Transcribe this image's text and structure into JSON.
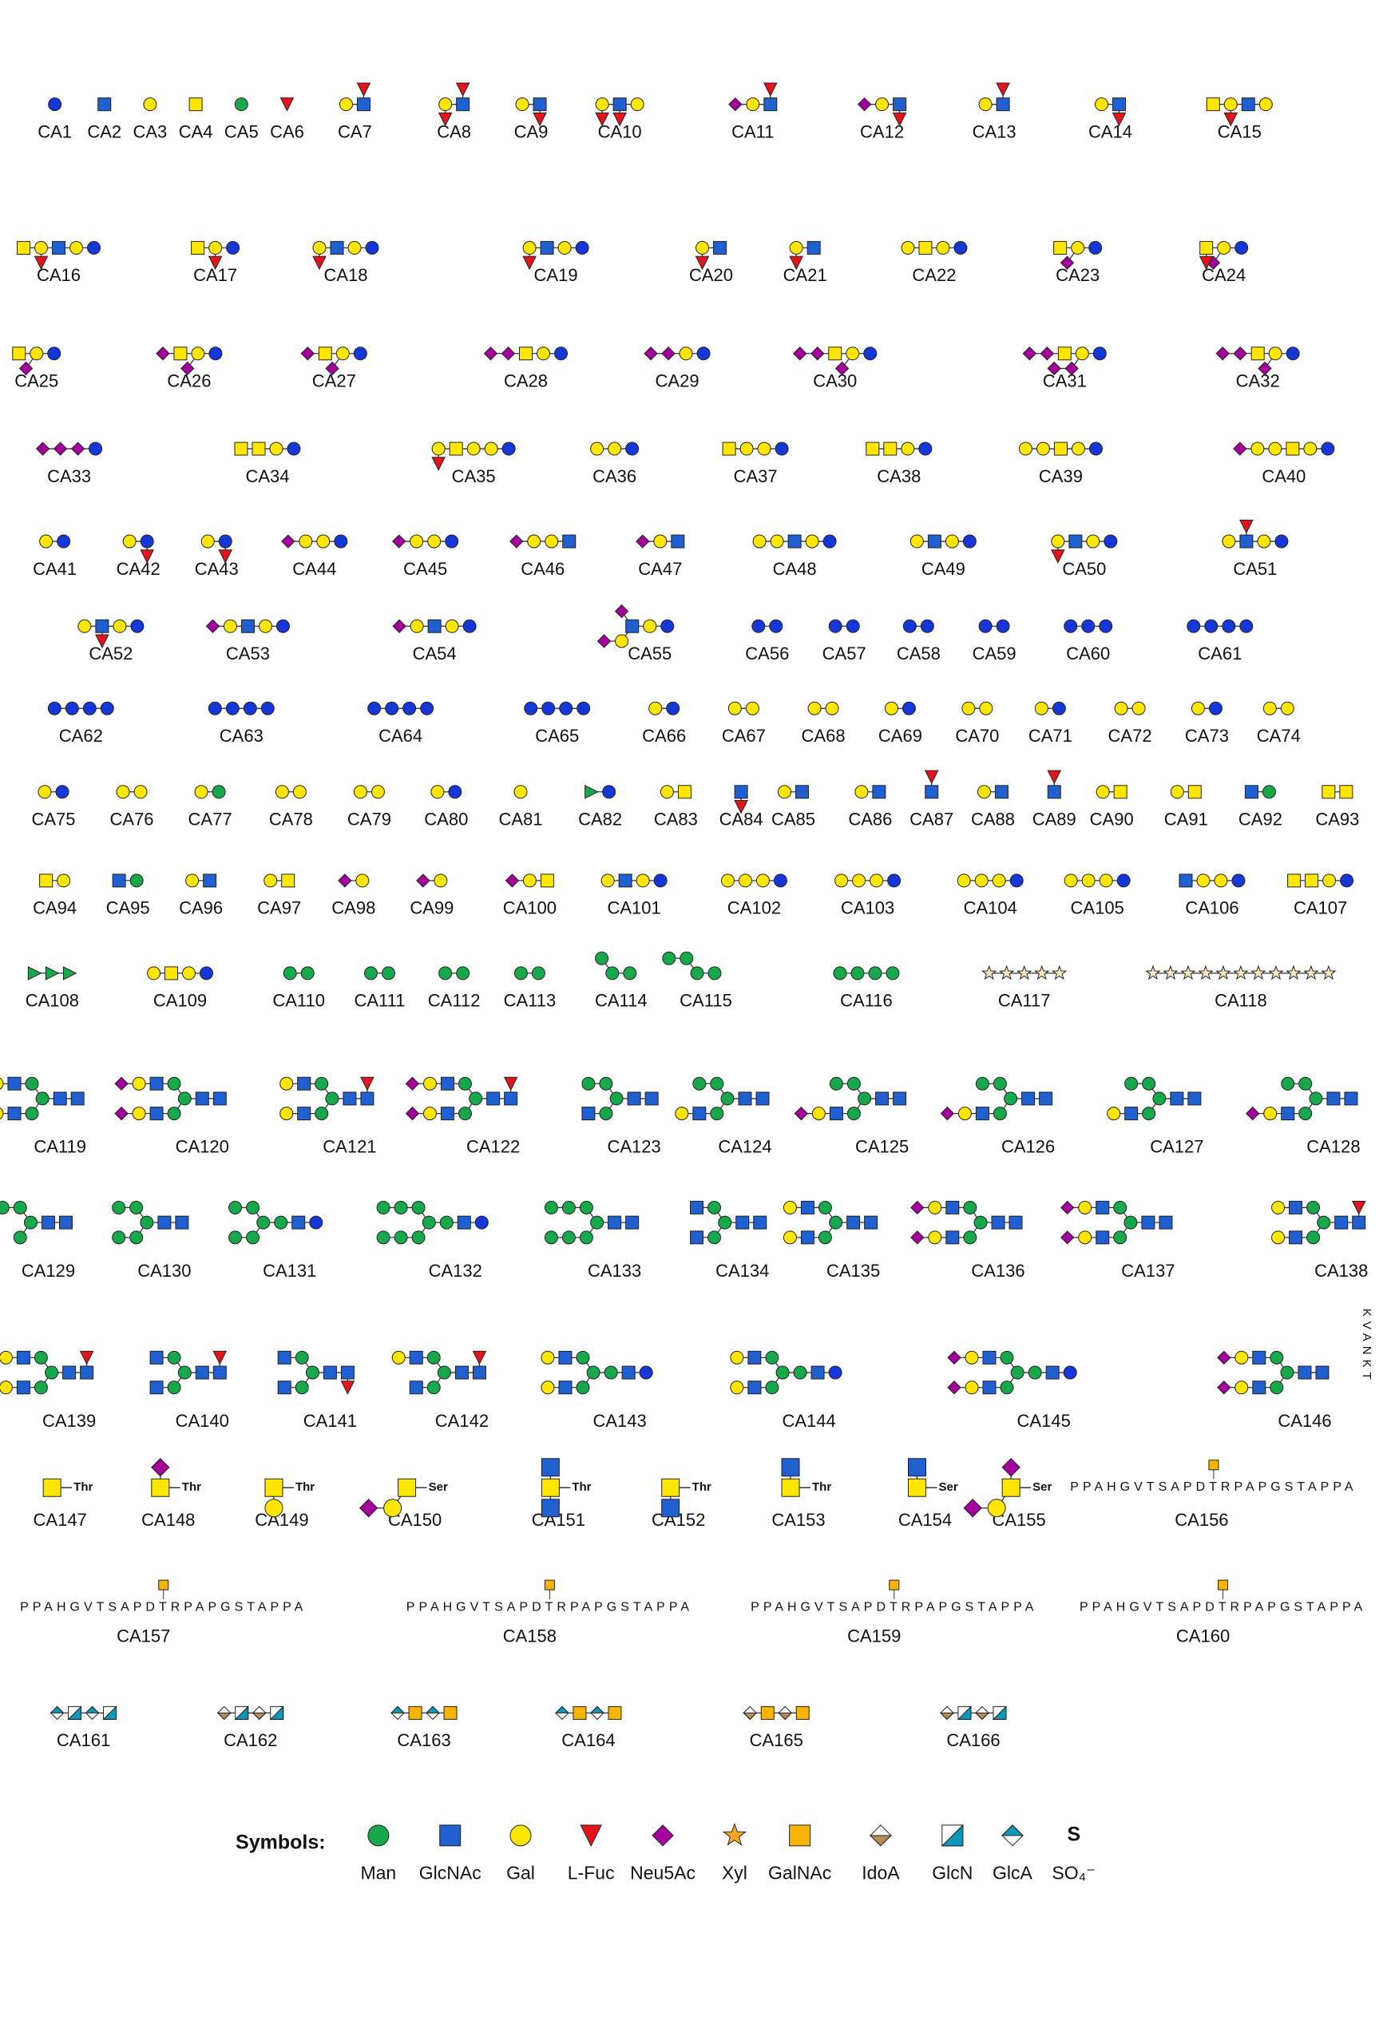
{
  "glycans": [
    {
      "label": "CA1"
    },
    {
      "label": "CA2"
    },
    {
      "label": "CA3"
    },
    {
      "label": "CA4"
    },
    {
      "label": "CA5"
    },
    {
      "label": "CA6"
    },
    {
      "label": "CA7"
    },
    {
      "label": "CA8"
    },
    {
      "label": "CA9"
    },
    {
      "label": "CA10"
    },
    {
      "label": "CA11"
    },
    {
      "label": "CA12"
    },
    {
      "label": "CA13"
    },
    {
      "label": "CA14"
    },
    {
      "label": "CA15"
    },
    {
      "label": "CA16"
    },
    {
      "label": "CA17"
    },
    {
      "label": "CA18"
    },
    {
      "label": "CA19"
    },
    {
      "label": "CA20"
    },
    {
      "label": "CA21"
    },
    {
      "label": "CA22"
    },
    {
      "label": "CA23"
    },
    {
      "label": "CA24"
    },
    {
      "label": "CA25"
    },
    {
      "label": "CA26"
    },
    {
      "label": "CA27"
    },
    {
      "label": "CA28"
    },
    {
      "label": "CA29"
    },
    {
      "label": "CA30"
    },
    {
      "label": "CA31"
    },
    {
      "label": "CA32"
    },
    {
      "label": "CA33"
    },
    {
      "label": "CA34"
    },
    {
      "label": "CA35"
    },
    {
      "label": "CA36"
    },
    {
      "label": "CA37"
    },
    {
      "label": "CA38"
    },
    {
      "label": "CA39"
    },
    {
      "label": "CA40"
    },
    {
      "label": "CA41"
    },
    {
      "label": "CA42"
    },
    {
      "label": "CA43"
    },
    {
      "label": "CA44"
    },
    {
      "label": "CA45"
    },
    {
      "label": "CA46"
    },
    {
      "label": "CA47"
    },
    {
      "label": "CA48"
    },
    {
      "label": "CA49"
    },
    {
      "label": "CA50"
    },
    {
      "label": "CA51"
    },
    {
      "label": "CA52"
    },
    {
      "label": "CA53"
    },
    {
      "label": "CA54"
    },
    {
      "label": "CA55"
    },
    {
      "label": "CA56"
    },
    {
      "label": "CA57"
    },
    {
      "label": "CA58"
    },
    {
      "label": "CA59"
    },
    {
      "label": "CA60"
    },
    {
      "label": "CA61"
    },
    {
      "label": "CA62"
    },
    {
      "label": "CA63"
    },
    {
      "label": "CA64"
    },
    {
      "label": "CA65"
    },
    {
      "label": "CA66"
    },
    {
      "label": "CA67"
    },
    {
      "label": "CA68"
    },
    {
      "label": "CA69"
    },
    {
      "label": "CA70"
    },
    {
      "label": "CA71"
    },
    {
      "label": "CA72"
    },
    {
      "label": "CA73"
    },
    {
      "label": "CA74"
    },
    {
      "label": "CA75"
    },
    {
      "label": "CA76"
    },
    {
      "label": "CA77"
    },
    {
      "label": "CA78"
    },
    {
      "label": "CA79"
    },
    {
      "label": "CA80"
    },
    {
      "label": "CA81"
    },
    {
      "label": "CA82"
    },
    {
      "label": "CA83"
    },
    {
      "label": "CA84"
    },
    {
      "label": "CA85"
    },
    {
      "label": "CA86"
    },
    {
      "label": "CA87"
    },
    {
      "label": "CA88"
    },
    {
      "label": "CA89"
    },
    {
      "label": "CA90"
    },
    {
      "label": "CA91"
    },
    {
      "label": "CA92"
    },
    {
      "label": "CA93"
    },
    {
      "label": "CA94"
    },
    {
      "label": "CA95"
    },
    {
      "label": "CA96"
    },
    {
      "label": "CA97"
    },
    {
      "label": "CA98"
    },
    {
      "label": "CA99"
    },
    {
      "label": "CA100"
    },
    {
      "label": "CA101"
    },
    {
      "label": "CA102"
    },
    {
      "label": "CA103"
    },
    {
      "label": "CA104"
    },
    {
      "label": "CA105"
    },
    {
      "label": "CA106"
    },
    {
      "label": "CA107"
    },
    {
      "label": "CA108"
    },
    {
      "label": "CA109"
    },
    {
      "label": "CA110"
    },
    {
      "label": "CA111"
    },
    {
      "label": "CA112"
    },
    {
      "label": "CA113"
    },
    {
      "label": "CA114"
    },
    {
      "label": "CA115"
    },
    {
      "label": "CA116"
    },
    {
      "label": "CA117"
    },
    {
      "label": "CA118"
    },
    {
      "label": "CA119"
    },
    {
      "label": "CA120"
    },
    {
      "label": "CA121"
    },
    {
      "label": "CA122"
    },
    {
      "label": "CA123"
    },
    {
      "label": "CA124"
    },
    {
      "label": "CA125"
    },
    {
      "label": "CA126"
    },
    {
      "label": "CA127"
    },
    {
      "label": "CA128"
    },
    {
      "label": "CA129"
    },
    {
      "label": "CA130"
    },
    {
      "label": "CA131"
    },
    {
      "label": "CA132"
    },
    {
      "label": "CA133"
    },
    {
      "label": "CA134"
    },
    {
      "label": "CA135"
    },
    {
      "label": "CA136"
    },
    {
      "label": "CA137"
    },
    {
      "label": "CA138"
    },
    {
      "label": "CA139"
    },
    {
      "label": "CA140"
    },
    {
      "label": "CA141"
    },
    {
      "label": "CA142"
    },
    {
      "label": "CA143"
    },
    {
      "label": "CA144"
    },
    {
      "label": "CA145"
    },
    {
      "label": "CA146",
      "sequence": "KVANKT"
    },
    {
      "label": "CA147",
      "linked_to": "Thr"
    },
    {
      "label": "CA148",
      "linked_to": "Thr"
    },
    {
      "label": "CA149",
      "linked_to": "Thr"
    },
    {
      "label": "CA150",
      "linked_to": "Ser"
    },
    {
      "label": "CA151",
      "linked_to": "Thr"
    },
    {
      "label": "CA152",
      "linked_to": "Thr"
    },
    {
      "label": "CA153",
      "linked_to": "Thr"
    },
    {
      "label": "CA154",
      "linked_to": "Ser"
    },
    {
      "label": "CA155",
      "linked_to": "Ser"
    },
    {
      "label": "CA156",
      "sequence": "PPAHGVTSAPDTRPAPGSTAPPA"
    },
    {
      "label": "CA157",
      "sequence": "PPAHGVTSAPDTRPAPGSTAPPA"
    },
    {
      "label": "CA158",
      "sequence": "PPAHGVTSAPDTRPAPGSTAPPA"
    },
    {
      "label": "CA159",
      "sequence": "PPAHGVTSAPDTRPAPGSTAPPA"
    },
    {
      "label": "CA160",
      "sequence": "PPAHGVTSAPDTRPAPGSTAPPA"
    },
    {
      "label": "CA161"
    },
    {
      "label": "CA162"
    },
    {
      "label": "CA163"
    },
    {
      "label": "CA164"
    },
    {
      "label": "CA165"
    },
    {
      "label": "CA166"
    }
  ],
  "legend": {
    "title": "Symbols:",
    "items": [
      "Man",
      "GlcNAc",
      "Gal",
      "L-Fuc",
      "Neu5Ac",
      "Xyl",
      "GalNAc",
      "IdoA",
      "GlcN",
      "GlcA",
      "SO₄⁻"
    ],
    "sulfate_symbol": "S"
  }
}
